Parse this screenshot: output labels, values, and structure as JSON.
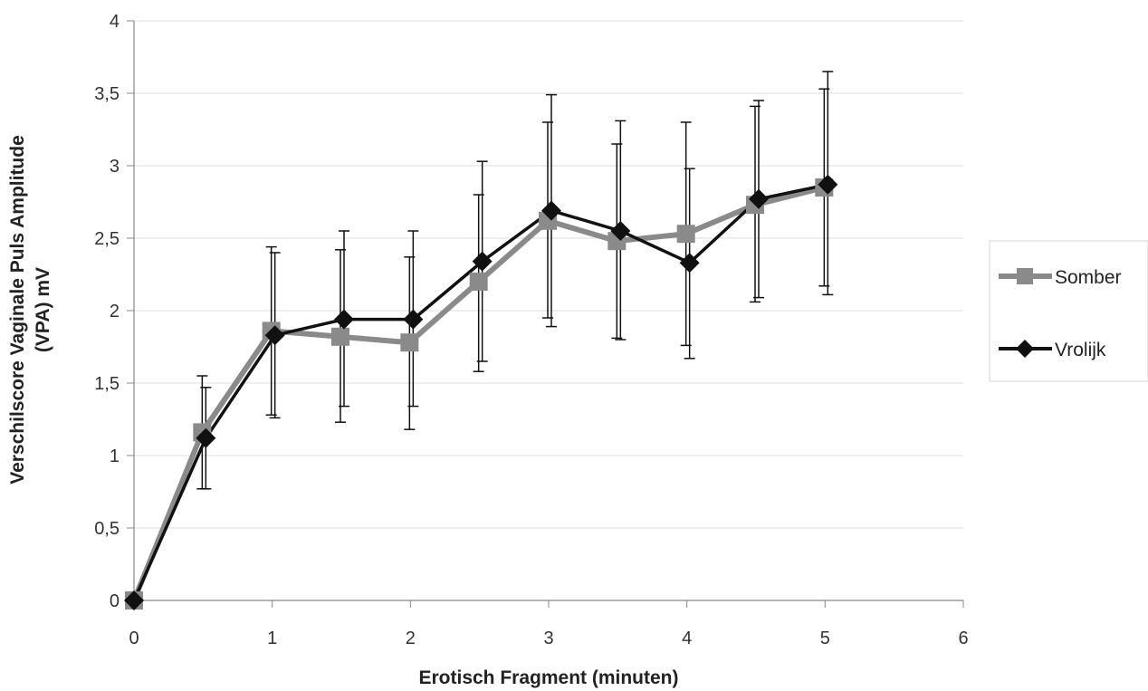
{
  "chart_data": {
    "type": "line",
    "title": "",
    "xlabel": "Erotisch Fragment (minuten)",
    "ylabel": "Verschilscore Vaginale Puls Amplitude (VPA) mV",
    "ylabel_lines": [
      "Verschilscore Vaginale Puls Amplitude",
      "(VPA) mV"
    ],
    "xlim": [
      0,
      6
    ],
    "ylim": [
      0,
      4
    ],
    "x_ticks": [
      0,
      1,
      2,
      3,
      4,
      5,
      6
    ],
    "x_tick_labels": [
      "0",
      "1",
      "2",
      "3",
      "4",
      "5",
      "6"
    ],
    "y_ticks": [
      0,
      0.5,
      1,
      1.5,
      2,
      2.5,
      3,
      3.5,
      4
    ],
    "y_tick_labels": [
      "0",
      "0,5",
      "1",
      "1,5",
      "2",
      "2,5",
      "3",
      "3,5",
      "4"
    ],
    "grid": "horizontal",
    "legend_position": "right",
    "series": [
      {
        "name": "Somber",
        "color": "#8a8a8a",
        "marker": "square",
        "x": [
          0,
          0.5,
          1,
          1.5,
          2,
          2.5,
          3,
          3.5,
          4,
          4.5,
          5
        ],
        "y": [
          0,
          1.16,
          1.86,
          1.82,
          1.78,
          2.2,
          2.62,
          2.48,
          2.53,
          2.73,
          2.85
        ],
        "err_low": [
          0,
          0.77,
          1.28,
          1.23,
          1.18,
          1.58,
          1.95,
          1.81,
          1.76,
          2.06,
          2.17
        ],
        "err_high": [
          0,
          1.55,
          2.44,
          2.42,
          2.37,
          2.8,
          3.3,
          3.15,
          3.3,
          3.41,
          3.53
        ]
      },
      {
        "name": "Vrolijk",
        "color": "#111111",
        "marker": "diamond",
        "x": [
          0,
          0.5,
          1,
          1.5,
          2,
          2.5,
          3,
          3.5,
          4,
          4.5,
          5
        ],
        "y": [
          0,
          1.12,
          1.83,
          1.94,
          1.94,
          2.34,
          2.69,
          2.55,
          2.33,
          2.77,
          2.87
        ],
        "err_low": [
          0,
          0.77,
          1.26,
          1.34,
          1.34,
          1.65,
          1.89,
          1.8,
          1.67,
          2.09,
          2.11
        ],
        "err_high": [
          0,
          1.47,
          2.4,
          2.55,
          2.55,
          3.03,
          3.49,
          3.31,
          2.98,
          3.45,
          3.65
        ]
      }
    ]
  }
}
